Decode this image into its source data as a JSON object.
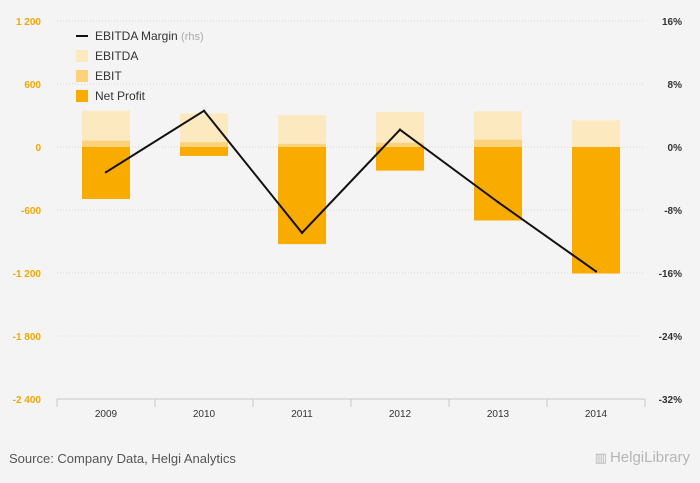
{
  "chart_data": {
    "type": "bar",
    "categories": [
      "2009",
      "2010",
      "2011",
      "2012",
      "2013",
      "2014"
    ],
    "series": [
      {
        "name": "EBITDA",
        "kind": "bar",
        "axis": "left",
        "color": "#fde9c0",
        "values": [
          345,
          320,
          305,
          335,
          340,
          255
        ]
      },
      {
        "name": "EBIT",
        "kind": "bar",
        "axis": "left",
        "color": "#fcd27a",
        "values": [
          60,
          45,
          30,
          40,
          70,
          0
        ]
      },
      {
        "name": "Net Profit",
        "kind": "bar",
        "axis": "left",
        "color": "#f9ab00",
        "values": [
          -495,
          -85,
          -925,
          -225,
          -700,
          -1205
        ]
      },
      {
        "name": "EBITDA Margin",
        "kind": "line",
        "axis": "right",
        "color": "#111111",
        "values": [
          -3.2,
          4.6,
          -10.9,
          2.2,
          -7.0,
          -15.8
        ]
      }
    ],
    "legend": {
      "position": "top-left",
      "rhs_note": "(rhs)"
    },
    "y_left": {
      "ticks": [
        "1 200",
        "600",
        "0",
        "-600",
        "-1 200",
        "-1 800",
        "-2 400"
      ],
      "range": [
        -2400,
        1200
      ]
    },
    "y_right": {
      "ticks": [
        "16%",
        "8%",
        "0%",
        "-8%",
        "-16%",
        "-24%",
        "-32%"
      ],
      "range": [
        -32,
        16
      ]
    },
    "grid": true
  },
  "footer": {
    "source": "Source: Company Data, Helgi Analytics",
    "logo": "HelgiLibrary"
  }
}
